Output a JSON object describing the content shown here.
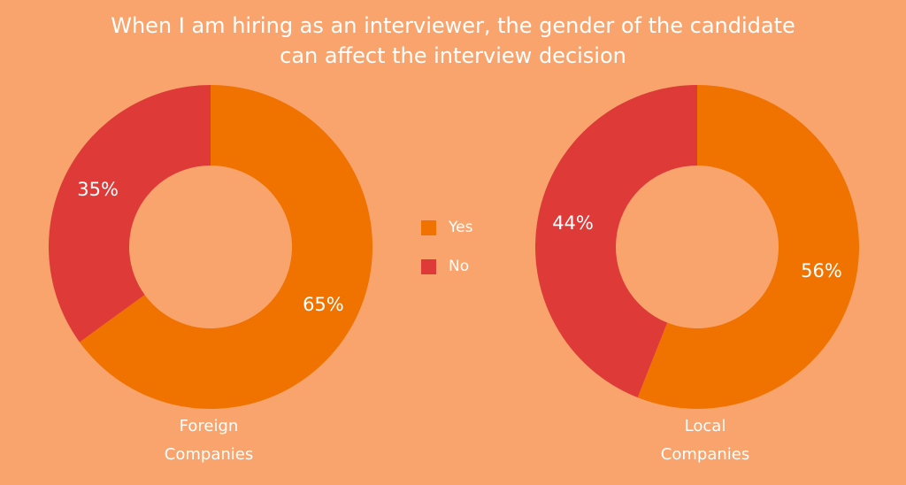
{
  "title_line1": "When I am hiring as an interviewer, the gender of the candidate",
  "title_line2": "can affect the interview decision",
  "legend": [
    {
      "label": "Yes",
      "color": "#f07300"
    },
    {
      "label": "No",
      "color": "#de3a38"
    }
  ],
  "chart_data": [
    {
      "type": "pie",
      "title": "Foreign Companies",
      "categories": [
        "Yes",
        "No"
      ],
      "values": [
        65,
        35
      ],
      "value_labels": [
        "65%",
        "35%"
      ],
      "colors": [
        "#f07300",
        "#de3a38"
      ],
      "caption_lines": [
        "Foreign",
        "Companies"
      ],
      "legend_position": "center"
    },
    {
      "type": "pie",
      "title": "Local Companies",
      "categories": [
        "Yes",
        "No"
      ],
      "values": [
        56,
        44
      ],
      "value_labels": [
        "56%",
        "44%"
      ],
      "colors": [
        "#f07300",
        "#de3a38"
      ],
      "caption_lines": [
        "Local",
        "Companies"
      ],
      "legend_position": "center"
    }
  ]
}
